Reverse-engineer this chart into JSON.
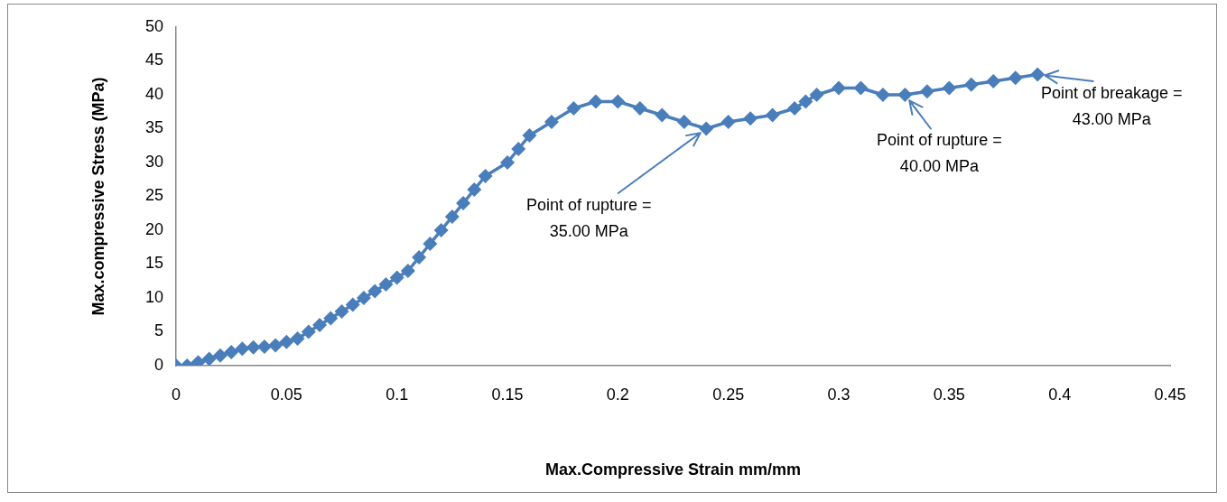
{
  "chart_data": {
    "type": "line",
    "xlabel": "Max.Compressive Strain mm/mm",
    "ylabel": "Max.compressive Stress (MPa)",
    "x": [
      0,
      0.005,
      0.01,
      0.015,
      0.02,
      0.025,
      0.03,
      0.035,
      0.04,
      0.045,
      0.05,
      0.055,
      0.06,
      0.065,
      0.07,
      0.075,
      0.08,
      0.085,
      0.09,
      0.095,
      0.1,
      0.105,
      0.11,
      0.115,
      0.12,
      0.125,
      0.13,
      0.135,
      0.14,
      0.15,
      0.155,
      0.16,
      0.17,
      0.18,
      0.19,
      0.2,
      0.21,
      0.22,
      0.23,
      0.24,
      0.25,
      0.26,
      0.27,
      0.28,
      0.285,
      0.29,
      0.3,
      0.31,
      0.32,
      0.33,
      0.34,
      0.35,
      0.36,
      0.37,
      0.38,
      0.39
    ],
    "series": [
      {
        "color": "#4a7ebb",
        "values": [
          0,
          0,
          0.5,
          1,
          1.5,
          2,
          2.5,
          2.7,
          2.8,
          3,
          3.5,
          4,
          5,
          6,
          7,
          8,
          9,
          10,
          11,
          12,
          13,
          14,
          16,
          18,
          20,
          22,
          24,
          26,
          28,
          30,
          32,
          34,
          36,
          38,
          39,
          39,
          38,
          37,
          36,
          35,
          36,
          36.5,
          37,
          38,
          39,
          40,
          41,
          41,
          40,
          40,
          40.5,
          41,
          41.5,
          42,
          42.5,
          43
        ]
      }
    ],
    "xlim": [
      0,
      0.45
    ],
    "xticks": [
      0,
      0.05,
      0.1,
      0.15,
      0.2,
      0.25,
      0.3,
      0.35,
      0.4,
      0.45
    ],
    "ylim": [
      0,
      50
    ],
    "yticks": [
      0,
      5,
      10,
      15,
      20,
      25,
      30,
      35,
      40,
      45,
      50
    ],
    "grid": false,
    "legend": false,
    "marker": "diamond",
    "line_style": "solid",
    "annotations": [
      {
        "text": "Point of rupture =\n35.00 MPa",
        "x": 0.24,
        "y": 35
      },
      {
        "text": "Point of rupture =\n40.00 MPa",
        "x": 0.33,
        "y": 40
      },
      {
        "text": "Point of breakage =\n43.00 MPa",
        "x": 0.39,
        "y": 43
      }
    ]
  }
}
